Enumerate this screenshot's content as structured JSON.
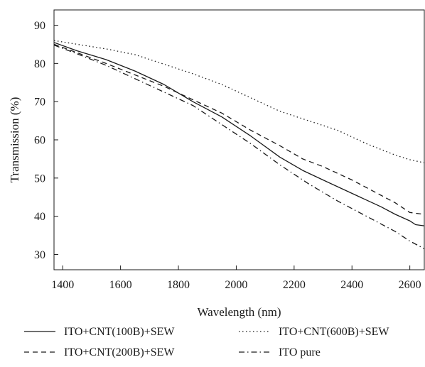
{
  "chart_data": {
    "type": "line",
    "title": "",
    "xlabel": "Wavelength (nm)",
    "ylabel": "Transmission (%)",
    "xlim": [
      1370,
      2650
    ],
    "ylim": [
      26,
      94
    ],
    "xticks": [
      1400,
      1600,
      1800,
      2000,
      2200,
      2400,
      2600
    ],
    "yticks": [
      30,
      40,
      50,
      60,
      70,
      80,
      90
    ],
    "grid": false,
    "legend_position": "bottom",
    "series": [
      {
        "name": "ITO+CNT(100B)+SEW",
        "dash": "solid",
        "color": "#1a1a1a",
        "x": [
          1370,
          1450,
          1550,
          1650,
          1750,
          1850,
          1950,
          2050,
          2150,
          2230,
          2300,
          2400,
          2500,
          2550,
          2600,
          2620,
          2650
        ],
        "y": [
          85.5,
          83.3,
          81.0,
          78.0,
          74.5,
          70.0,
          66.0,
          61.0,
          55.5,
          52.0,
          49.5,
          46.0,
          42.5,
          40.5,
          38.8,
          37.8,
          37.5
        ]
      },
      {
        "name": "ITO+CNT(200B)+SEW",
        "dash": "dashed",
        "color": "#1a1a1a",
        "x": [
          1370,
          1450,
          1550,
          1650,
          1750,
          1850,
          1950,
          2050,
          2150,
          2230,
          2300,
          2400,
          2500,
          2550,
          2600,
          2650
        ],
        "y": [
          85.0,
          82.8,
          80.0,
          77.0,
          74.0,
          70.5,
          67.0,
          62.5,
          58.5,
          55.0,
          53.0,
          49.5,
          45.5,
          43.5,
          41.0,
          40.5
        ]
      },
      {
        "name": "ITO+CNT(600B)+SEW",
        "dash": "dotted",
        "color": "#1a1a1a",
        "x": [
          1370,
          1450,
          1550,
          1650,
          1750,
          1850,
          1950,
          2050,
          2150,
          2250,
          2350,
          2450,
          2550,
          2600,
          2650
        ],
        "y": [
          86.0,
          85.0,
          83.8,
          82.3,
          79.8,
          77.3,
          74.5,
          71.0,
          67.5,
          65.0,
          62.5,
          59.0,
          56.0,
          54.8,
          54.0
        ]
      },
      {
        "name": "ITO pure",
        "dash": "dashdot",
        "color": "#1a1a1a",
        "x": [
          1370,
          1450,
          1550,
          1650,
          1750,
          1850,
          1950,
          2050,
          2150,
          2250,
          2350,
          2450,
          2550,
          2600,
          2650
        ],
        "y": [
          84.8,
          82.5,
          79.5,
          76.0,
          72.5,
          69.0,
          64.0,
          59.0,
          53.5,
          48.5,
          44.0,
          40.0,
          36.0,
          33.5,
          31.5
        ]
      }
    ]
  }
}
